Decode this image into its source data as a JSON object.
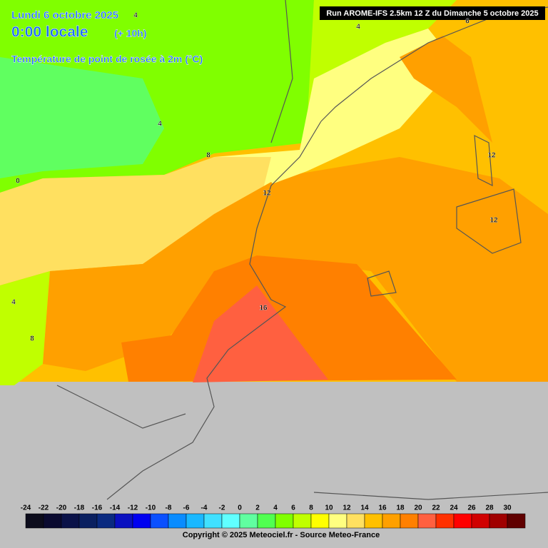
{
  "header": {
    "date": "Lundi 6 octobre 2025",
    "time": "0:00 locale",
    "lead": "(+ 10h)",
    "field": "Température de point de rosée à 2m (°C)",
    "run": "Run AROME-IFS 2.5km 12 Z du Dimanche 5 octobre 2025"
  },
  "contour_labels": [
    4,
    4,
    6,
    4,
    8,
    12,
    12,
    12,
    16,
    0,
    4,
    8
  ],
  "legend": {
    "ticks": [
      -24,
      -22,
      -20,
      -18,
      -16,
      -14,
      -12,
      -10,
      -8,
      -6,
      -4,
      -2,
      0,
      2,
      4,
      6,
      8,
      10,
      12,
      14,
      16,
      18,
      20,
      22,
      24,
      26,
      28,
      30
    ],
    "colors": [
      "#0c0c1c",
      "#0a0a30",
      "#0a1248",
      "#0a2060",
      "#0a2a80",
      "#0a10c0",
      "#0000f0",
      "#0a50ff",
      "#0a8cff",
      "#1ab8ff",
      "#40e0ff",
      "#60ffff",
      "#60ffa0",
      "#50ff50",
      "#80ff00",
      "#c0ff00",
      "#ffff00",
      "#ffff80",
      "#ffe060",
      "#ffc000",
      "#ffa000",
      "#ff8000",
      "#ff6040",
      "#ff3000",
      "#ff0000",
      "#d00000",
      "#a00000",
      "#600000"
    ]
  },
  "footer": {
    "copyright": "Copyright © 2025 Meteociel.fr - Source Meteo-France"
  }
}
